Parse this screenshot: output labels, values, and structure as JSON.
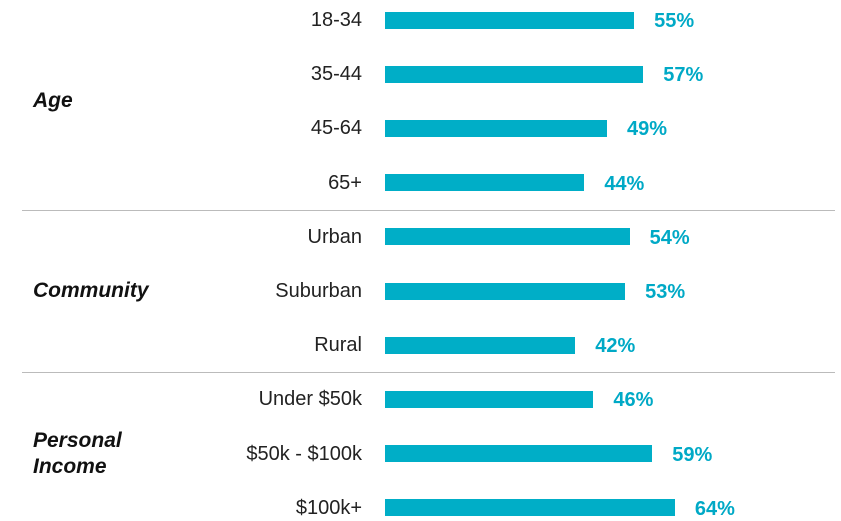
{
  "chart_data": {
    "type": "bar",
    "orientation": "horizontal",
    "color": "#00aec7",
    "label_color": "#00a9c6",
    "groups": [
      {
        "name": "Age",
        "categories": [
          "18-34",
          "35-44",
          "45-64",
          "65+"
        ],
        "values": [
          55,
          57,
          49,
          44
        ],
        "value_labels": [
          "55%",
          "57%",
          "49%",
          "44%"
        ]
      },
      {
        "name": "Community",
        "categories": [
          "Urban",
          "Suburban",
          "Rural"
        ],
        "values": [
          54,
          53,
          42
        ],
        "value_labels": [
          "54%",
          "53%",
          "42%"
        ]
      },
      {
        "name": "Personal Income",
        "categories": [
          "Under $50k",
          "$50k - $100k",
          "$100k+"
        ],
        "values": [
          46,
          59,
          64
        ],
        "value_labels": [
          "46%",
          "59%",
          "64%"
        ]
      }
    ]
  }
}
